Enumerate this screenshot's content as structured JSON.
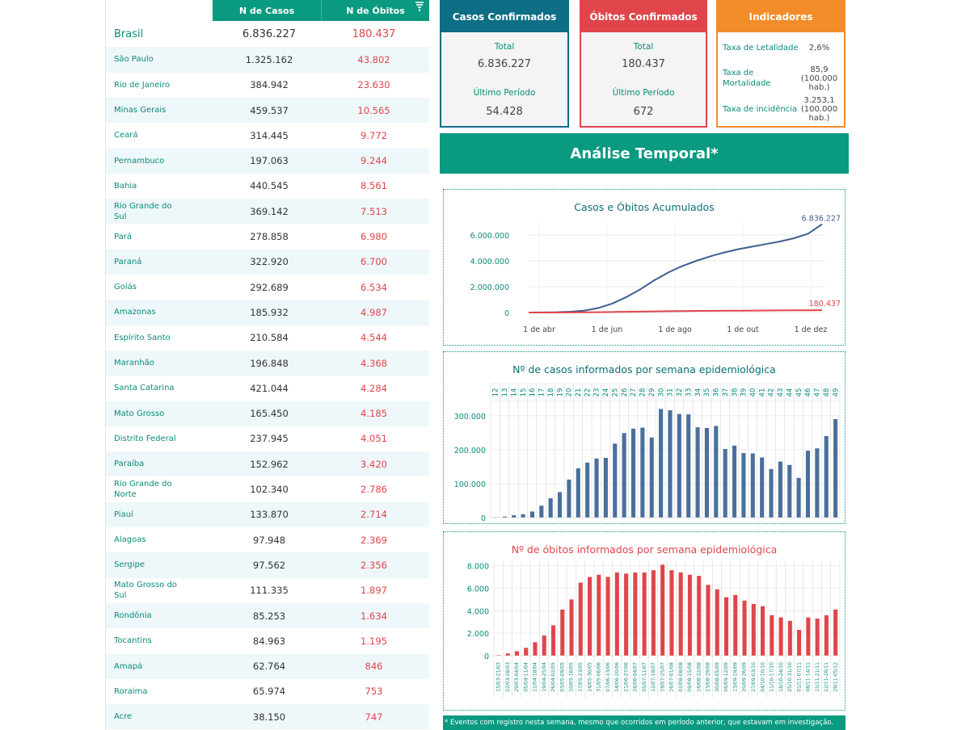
{
  "table": {
    "header_cases": "N de Casos",
    "header_deaths": "N de Óbitos",
    "rows": [
      {
        "name": "Brasil",
        "cases": "6.836.227",
        "deaths": "180.437"
      },
      {
        "name": "São Paulo",
        "cases": "1.325.162",
        "deaths": "43.802"
      },
      {
        "name": "Rio de Janeiro",
        "cases": "384.942",
        "deaths": "23.630"
      },
      {
        "name": "Minas Gerais",
        "cases": "459.537",
        "deaths": "10.565"
      },
      {
        "name": "Ceará",
        "cases": "314.445",
        "deaths": "9.772"
      },
      {
        "name": "Pernambuco",
        "cases": "197.063",
        "deaths": "9.244"
      },
      {
        "name": "Bahia",
        "cases": "440.545",
        "deaths": "8.561"
      },
      {
        "name": "Rio Grande do Sul",
        "cases": "369.142",
        "deaths": "7.513"
      },
      {
        "name": "Pará",
        "cases": "278.858",
        "deaths": "6.980"
      },
      {
        "name": "Paraná",
        "cases": "322.920",
        "deaths": "6.700"
      },
      {
        "name": "Goiás",
        "cases": "292.689",
        "deaths": "6.534"
      },
      {
        "name": "Amazonas",
        "cases": "185.932",
        "deaths": "4.987"
      },
      {
        "name": "Espírito Santo",
        "cases": "210.584",
        "deaths": "4.544"
      },
      {
        "name": "Maranhão",
        "cases": "196.848",
        "deaths": "4.368"
      },
      {
        "name": "Santa Catarina",
        "cases": "421.044",
        "deaths": "4.284"
      },
      {
        "name": "Mato Grosso",
        "cases": "165.450",
        "deaths": "4.185"
      },
      {
        "name": "Distrito Federal",
        "cases": "237.945",
        "deaths": "4.051"
      },
      {
        "name": "Paraíba",
        "cases": "152.962",
        "deaths": "3.420"
      },
      {
        "name": "Rio Grande do Norte",
        "cases": "102.340",
        "deaths": "2.786"
      },
      {
        "name": "Piauí",
        "cases": "133.870",
        "deaths": "2.714"
      },
      {
        "name": "Alagoas",
        "cases": "97.948",
        "deaths": "2.369"
      },
      {
        "name": "Sergipe",
        "cases": "97.562",
        "deaths": "2.356"
      },
      {
        "name": "Mato Grosso do Sul",
        "cases": "111.335",
        "deaths": "1.897"
      },
      {
        "name": "Rondônia",
        "cases": "85.253",
        "deaths": "1.634"
      },
      {
        "name": "Tocantins",
        "cases": "84.963",
        "deaths": "1.195"
      },
      {
        "name": "Amapá",
        "cases": "62.764",
        "deaths": "846"
      },
      {
        "name": "Roraima",
        "cases": "65.974",
        "deaths": "753"
      },
      {
        "name": "Acre",
        "cases": "38.150",
        "deaths": "747"
      }
    ]
  },
  "cards": {
    "cases": {
      "title": "Casos Confirmados",
      "total_label": "Total",
      "total": "6.836.227",
      "period_label": "Último Período",
      "period": "54.428",
      "color": "#0d6e86"
    },
    "deaths": {
      "title": "Óbitos Confirmados",
      "total_label": "Total",
      "total": "180.437",
      "period_label": "Último Período",
      "period": "672",
      "color": "#e0454b"
    },
    "indicators": {
      "title": "Indicadores",
      "color": "#f28c28",
      "items": [
        {
          "label": "Taxa de Letalidade",
          "value": "2,6%"
        },
        {
          "label": "Taxa de Mortalidade",
          "value": "85,9 (100.000 hab.)"
        },
        {
          "label": "Taxa de incidência",
          "value": "3.253,1 (100.000 hab.)"
        }
      ]
    }
  },
  "banner": "Análise Temporal*",
  "footer_note": "* Eventos com registro nesta semana, mesmo que ocorridos em período anterior, que estavam em investigação.",
  "colors": {
    "teal": "#0a9a80",
    "blue": "#3e5f8f",
    "red": "#e0454b",
    "orange": "#f28c28"
  },
  "chart_data": [
    {
      "type": "line",
      "title": "Casos e Óbitos Acumulados",
      "x_ticks": [
        "1 de abr",
        "1 de jun",
        "1 de ago",
        "1 de out",
        "1 de dez"
      ],
      "y_ticks": [
        "0",
        "2.000.000",
        "4.000.000",
        "6.000.000"
      ],
      "ylim": [
        0,
        7000000
      ],
      "series": [
        {
          "label": "6.836.227",
          "color": "#3e5f8f",
          "values": [
            0,
            5000,
            20000,
            60000,
            150000,
            350000,
            700000,
            1200000,
            1800000,
            2500000,
            3100000,
            3600000,
            4000000,
            4350000,
            4650000,
            4900000,
            5100000,
            5300000,
            5500000,
            5750000,
            6100000,
            6836227
          ]
        },
        {
          "label": "180.437",
          "color": "#e0454b",
          "values": [
            0,
            500,
            2000,
            5000,
            12000,
            25000,
            40000,
            55000,
            70000,
            85000,
            100000,
            112000,
            122000,
            130000,
            137000,
            143000,
            150000,
            156000,
            162000,
            168000,
            174000,
            180437
          ]
        }
      ]
    },
    {
      "type": "bar",
      "title": "Nº de casos informados por semana epidemiológica",
      "categories": [
        "12",
        "13",
        "14",
        "15",
        "16",
        "17",
        "18",
        "19",
        "20",
        "21",
        "22",
        "23",
        "24",
        "25",
        "26",
        "27",
        "28",
        "29",
        "30",
        "31",
        "32",
        "33",
        "34",
        "35",
        "36",
        "37",
        "38",
        "39",
        "40",
        "41",
        "42",
        "43",
        "44",
        "45",
        "46",
        "47",
        "48",
        "49"
      ],
      "values": [
        1000,
        3000,
        7000,
        10000,
        18000,
        35000,
        57000,
        75000,
        112000,
        145000,
        162000,
        174000,
        176000,
        218000,
        249000,
        262000,
        265000,
        236000,
        320000,
        316000,
        305000,
        304000,
        266000,
        264000,
        270000,
        202000,
        212000,
        190000,
        189000,
        177000,
        143000,
        165000,
        155000,
        117000,
        197000,
        204000,
        240000,
        290000
      ],
      "y_ticks": [
        "0",
        "100.000",
        "200.000",
        "300.000"
      ],
      "ylim": [
        0,
        340000
      ],
      "color": "#4a6f9c"
    },
    {
      "type": "bar",
      "title": "Nº de óbitos informados por semana epidemiológica",
      "categories": [
        "15/03-21/03",
        "22/03-28/03",
        "29/03-04/04",
        "05/04-11/04",
        "12/04-18/04",
        "19/04-25/04",
        "26/04-02/05",
        "03/05-09/05",
        "10/05-16/05",
        "17/05-23/05",
        "24/05-30/05",
        "31/05-06/06",
        "07/06-13/06",
        "14/06-20/06",
        "21/06-27/06",
        "28/06-04/07",
        "05/07-11/07",
        "12/07-18/07",
        "19/07-25/07",
        "26/07-01/08",
        "02/08-08/08",
        "09/08-15/08",
        "16/08-22/08",
        "23/08-29/08",
        "30/08-05/09",
        "06/09-12/09",
        "13/09-19/09",
        "20/09-26/09",
        "27/09-03/10",
        "04/10-10/10",
        "11/10-17/10",
        "18/10-24/10",
        "25/10-31/10",
        "01/11-07/11",
        "08/11-14/11",
        "15/11-21/11",
        "22/11-28/11",
        "29/11-05/12"
      ],
      "values": [
        50,
        200,
        400,
        700,
        1200,
        1800,
        2700,
        4100,
        5000,
        6500,
        7000,
        7200,
        7000,
        7400,
        7300,
        7400,
        7400,
        7600,
        8100,
        7600,
        7400,
        7200,
        7100,
        6300,
        5900,
        5200,
        5400,
        4900,
        4600,
        4400,
        3600,
        3400,
        3100,
        2300,
        3400,
        3300,
        3600,
        4100
      ],
      "y_ticks": [
        "0",
        "2.000",
        "4.000",
        "6.000",
        "8.000"
      ],
      "ylim": [
        0,
        8400
      ],
      "color": "#e0454b"
    }
  ]
}
